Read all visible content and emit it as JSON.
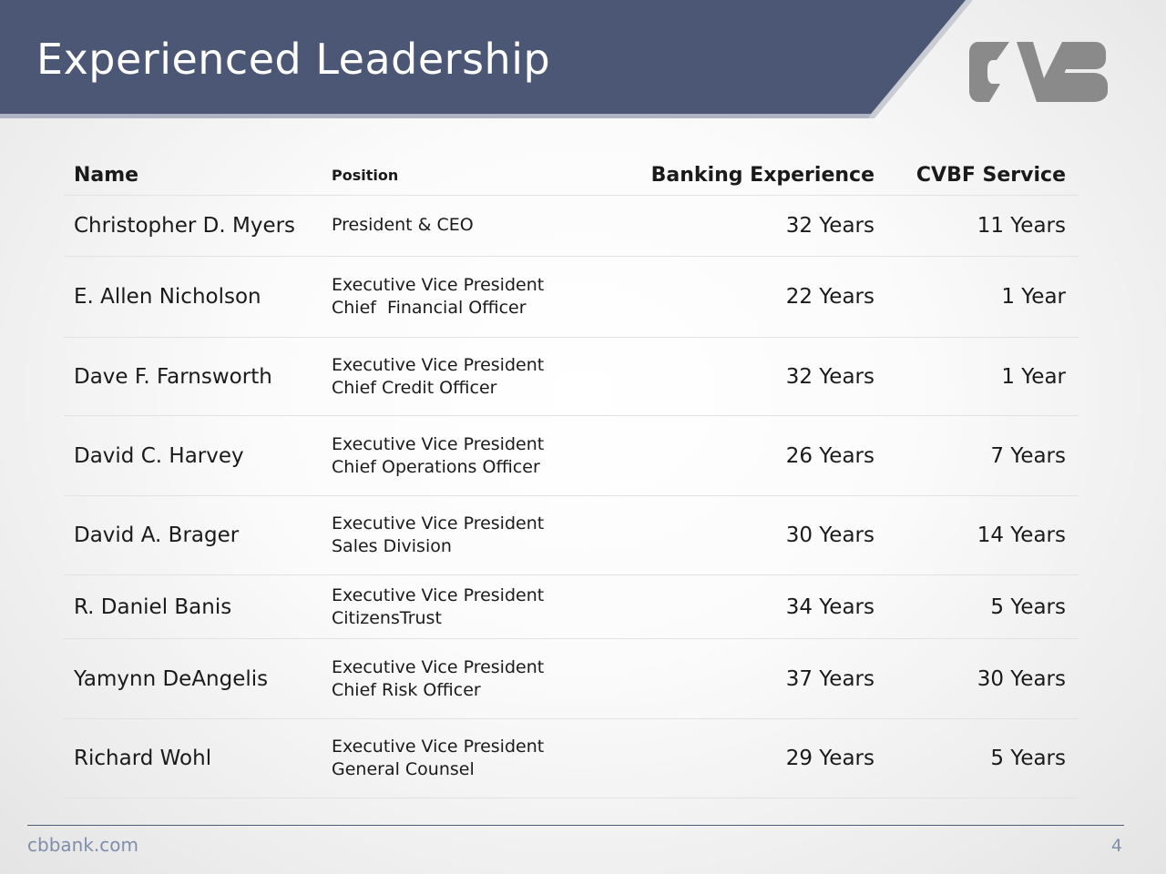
{
  "slide": {
    "title": "Experienced Leadership",
    "accent_color": "#4b5775",
    "logo": "CVB logo"
  },
  "table": {
    "headers": {
      "name": "Name",
      "position": "Position",
      "banking": "Banking Experience",
      "cvbf": "CVBF Service"
    },
    "rows": [
      {
        "name": "Christopher D. Myers",
        "title": "President & CEO",
        "role": "",
        "banking": "32 Years",
        "cvbf": "11 Years"
      },
      {
        "name": "E. Allen Nicholson",
        "title": "Executive Vice President",
        "role": "Chief  Financial Officer",
        "banking": "22 Years",
        "cvbf": "1 Year"
      },
      {
        "name": "Dave F. Farnsworth",
        "title": "Executive Vice President",
        "role": "Chief Credit Officer",
        "banking": "32 Years",
        "cvbf": "1 Year"
      },
      {
        "name": "David C. Harvey",
        "title": "Executive Vice President",
        "role": "Chief Operations Officer",
        "banking": "26 Years",
        "cvbf": "7 Years"
      },
      {
        "name": "David A. Brager",
        "title": "Executive Vice President",
        "role": "Sales Division",
        "banking": "30 Years",
        "cvbf": "14 Years"
      },
      {
        "name": "R. Daniel Banis",
        "title": "Executive Vice President",
        "role": "CitizensTrust",
        "banking": "34 Years",
        "cvbf": "5 Years"
      },
      {
        "name": "Yamynn DeAngelis",
        "title": "Executive Vice President",
        "role": "Chief Risk Officer",
        "banking": "37 Years",
        "cvbf": "30 Years"
      },
      {
        "name": "Richard Wohl",
        "title": "Executive Vice President",
        "role": "General Counsel",
        "banking": "29 Years",
        "cvbf": "5 Years"
      }
    ]
  },
  "footer": {
    "url": "cbbank.com",
    "page": "4"
  }
}
